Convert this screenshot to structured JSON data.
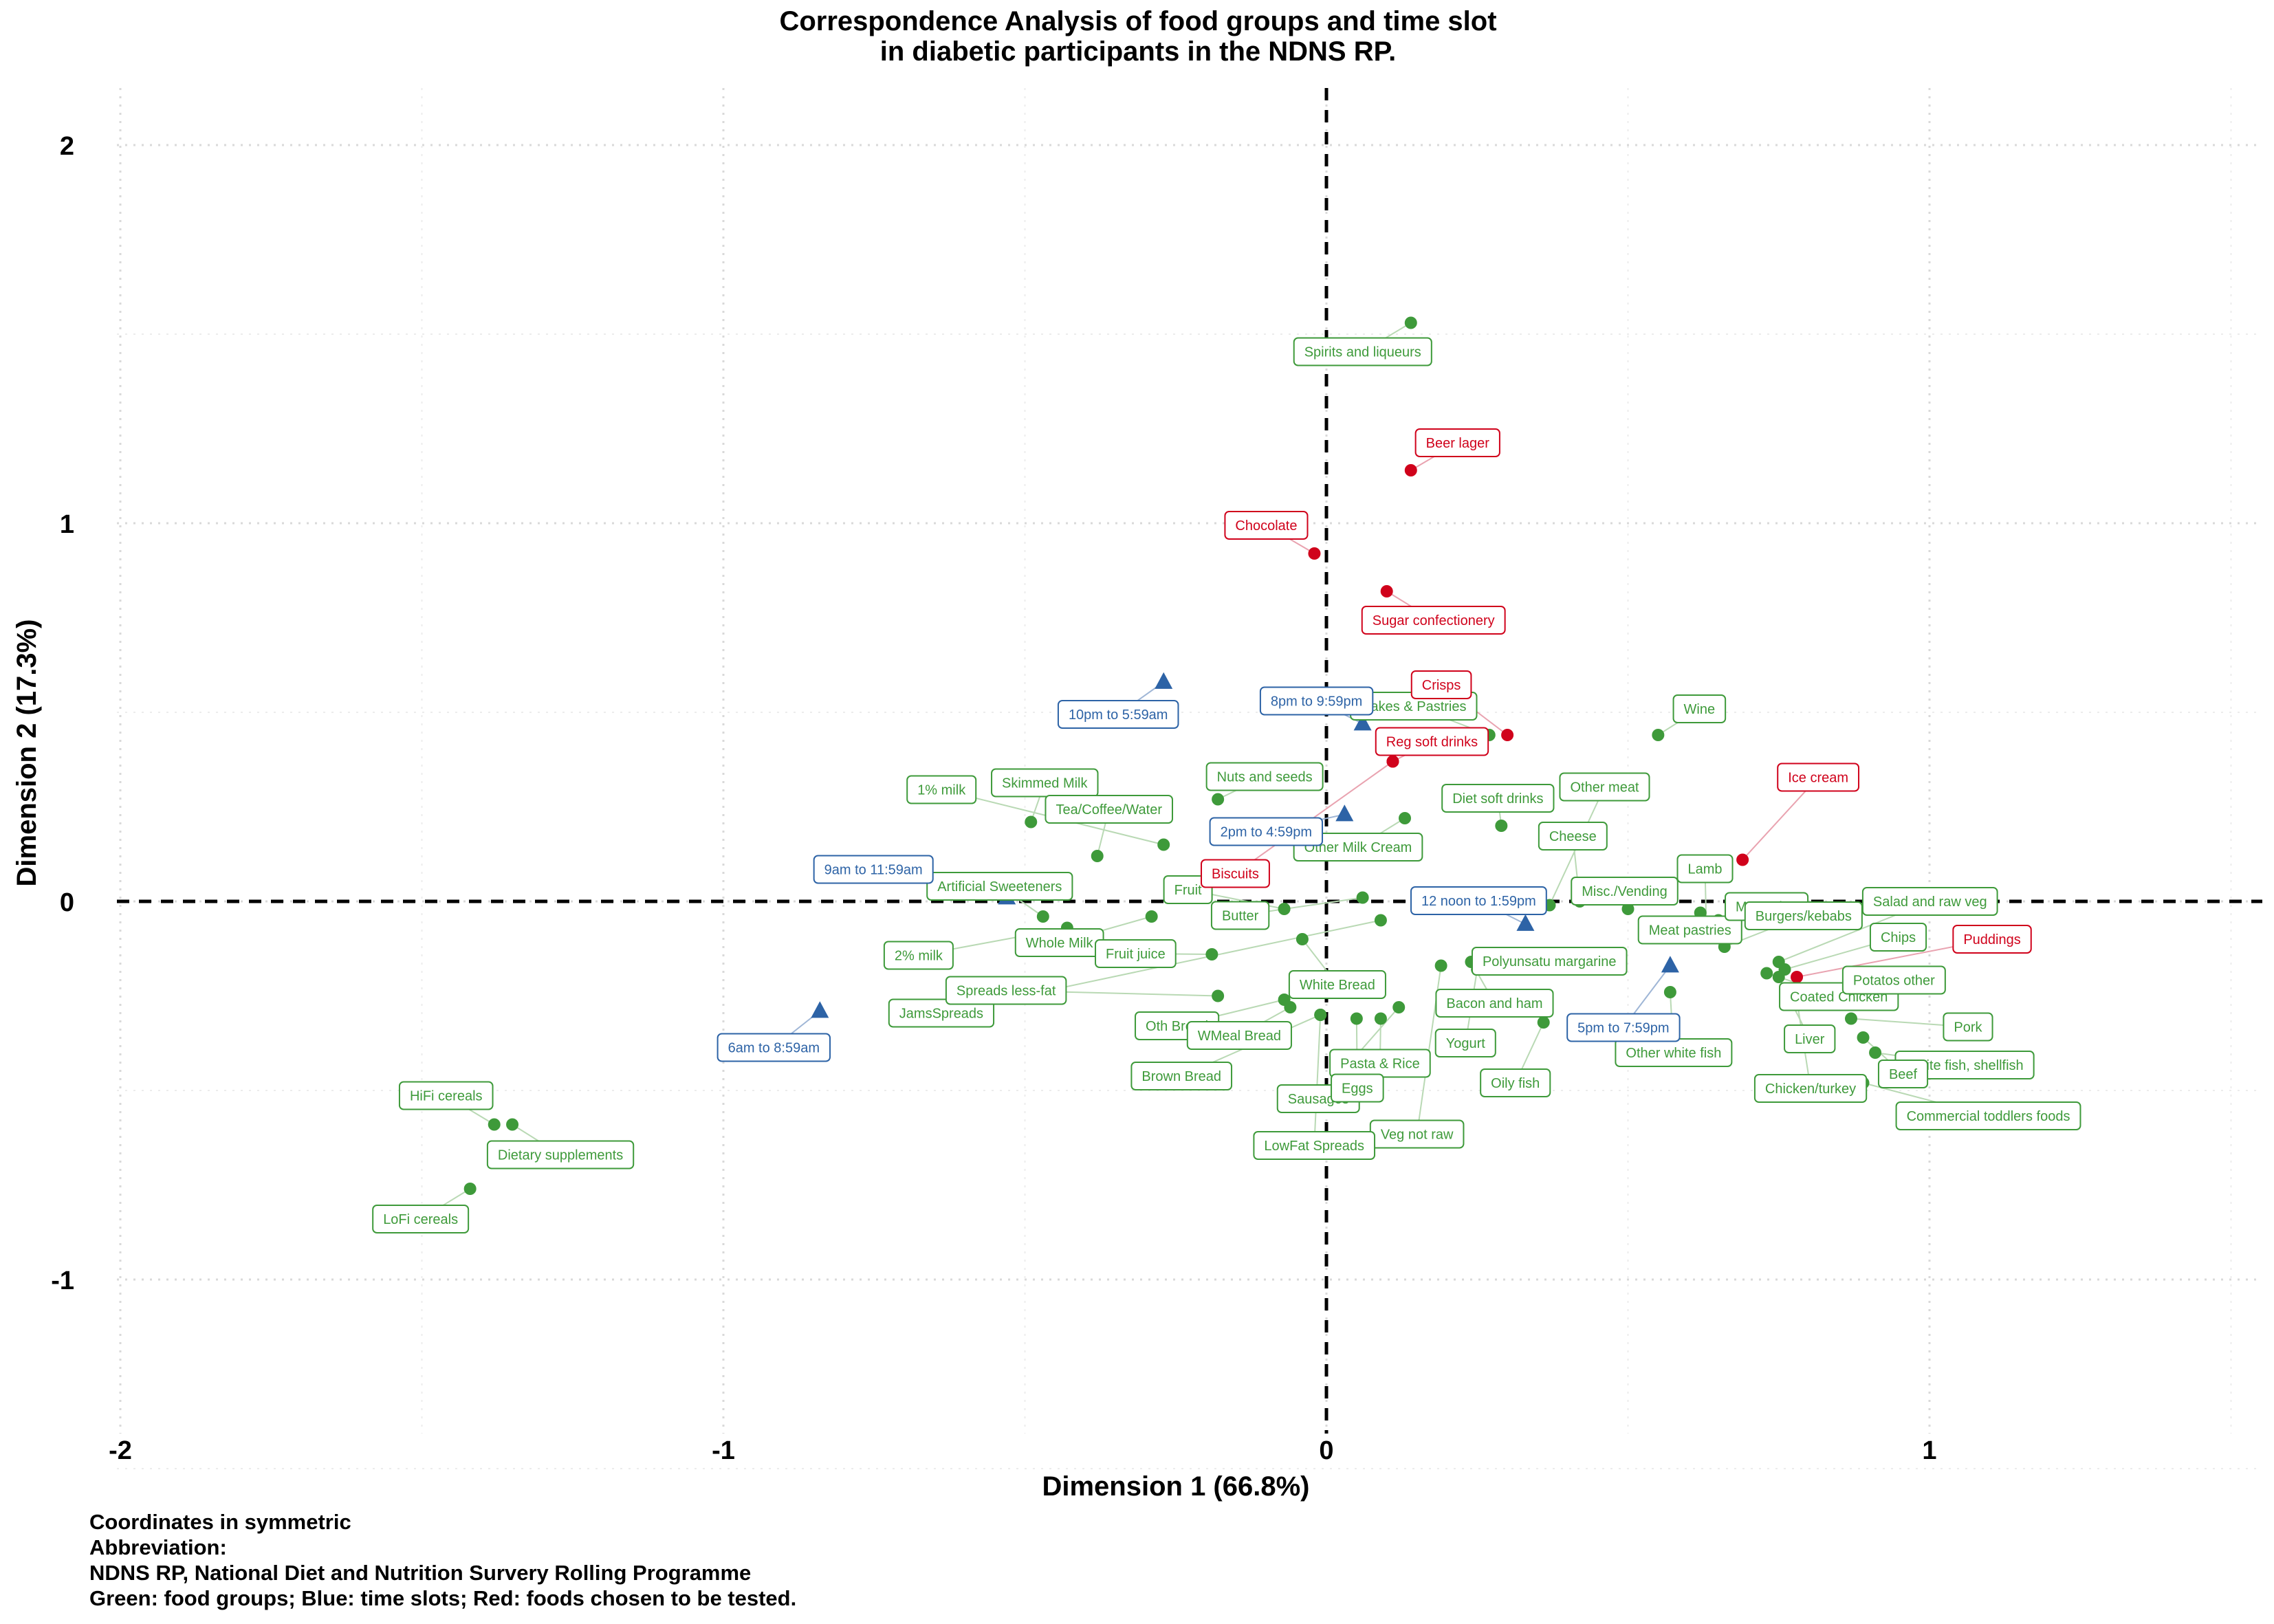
{
  "chart_data": {
    "type": "scatter",
    "title": [
      "Correspondence Analysis of food groups and time slot",
      "in diabetic participants in the NDNS RP."
    ],
    "xlabel": "Dimension 1 (66.8%)",
    "ylabel": "Dimension 2 (17.3%)",
    "xlim": [
      -2.1,
      1.55
    ],
    "ylim": [
      -1.42,
      2.16
    ],
    "x_ticks": [
      -2,
      -1,
      0,
      1
    ],
    "y_ticks": [
      -1,
      0,
      1,
      2
    ],
    "grid": true,
    "reference_lines": "dashed lines at x = 0 and y = 0",
    "colors": {
      "green": "#3e9a3a",
      "blue": "#2d63a6",
      "red": "#d0021b"
    },
    "series": [
      {
        "group": "food groups",
        "marker": "circle",
        "color": "green",
        "points": [
          {
            "label": "Spirits and liqueurs",
            "x": 0.14,
            "y": 1.53
          },
          {
            "label": "HiFi cereals",
            "x": -1.38,
            "y": -0.59
          },
          {
            "label": "Dietary supplements",
            "x": -1.35,
            "y": -0.59
          },
          {
            "label": "LoFi cereals",
            "x": -1.42,
            "y": -0.76
          },
          {
            "label": "Cakes & Pastries",
            "x": 0.27,
            "y": 0.44
          },
          {
            "label": "Wine",
            "x": 0.55,
            "y": 0.44
          },
          {
            "label": "Diet soft drinks",
            "x": 0.29,
            "y": 0.2
          },
          {
            "label": "Other meat",
            "x": 0.37,
            "y": -0.01
          },
          {
            "label": "Cheese",
            "x": 0.42,
            "y": 0.0
          },
          {
            "label": "Misc./Vending",
            "x": 0.5,
            "y": -0.02
          },
          {
            "label": "Meat pastries",
            "x": 0.62,
            "y": -0.03
          },
          {
            "label": "Margarine",
            "x": 0.65,
            "y": -0.05
          },
          {
            "label": "Lamb",
            "x": 0.63,
            "y": -0.07
          },
          {
            "label": "Burgers/kebabs",
            "x": 0.66,
            "y": -0.12
          },
          {
            "label": "Salad and raw veg",
            "x": 0.75,
            "y": -0.16
          },
          {
            "label": "Chips",
            "x": 0.76,
            "y": -0.18
          },
          {
            "label": "Coated Chicken",
            "x": 0.73,
            "y": -0.19
          },
          {
            "label": "Potatos other",
            "x": 0.81,
            "y": -0.23
          },
          {
            "label": "Pork",
            "x": 0.87,
            "y": -0.31
          },
          {
            "label": "White fish, shellfish",
            "x": 0.91,
            "y": -0.4
          },
          {
            "label": "Beef",
            "x": 0.89,
            "y": -0.36
          },
          {
            "label": "Liver",
            "x": 0.75,
            "y": -0.2
          },
          {
            "label": "Chicken/turkey",
            "x": 0.78,
            "y": -0.26
          },
          {
            "label": "Commercial toddlers foods",
            "x": 0.89,
            "y": -0.48
          },
          {
            "label": "Other white fish",
            "x": 0.57,
            "y": -0.24
          },
          {
            "label": "Oily fish",
            "x": 0.36,
            "y": -0.32
          },
          {
            "label": "Veg not raw",
            "x": 0.19,
            "y": -0.17
          },
          {
            "label": "Polyunsatu margarine",
            "x": 0.25,
            "y": -0.18
          },
          {
            "label": "Bacon and ham",
            "x": 0.24,
            "y": -0.16
          },
          {
            "label": "Pasta & Rice",
            "x": 0.09,
            "y": -0.31
          },
          {
            "label": "Sausages",
            "x": 0.12,
            "y": -0.28
          },
          {
            "label": "Skimmed Milk",
            "x": -0.49,
            "y": 0.21
          },
          {
            "label": "1% milk",
            "x": -0.27,
            "y": 0.15
          },
          {
            "label": "Tea/Coffee/Water",
            "x": -0.38,
            "y": 0.12
          },
          {
            "label": "Nuts and seeds",
            "x": -0.18,
            "y": 0.27
          },
          {
            "label": "Other Milk Cream",
            "x": 0.13,
            "y": 0.22
          },
          {
            "label": "Artificial Sweeteners",
            "x": -0.47,
            "y": -0.04
          },
          {
            "label": "2% milk",
            "x": -0.43,
            "y": -0.07
          },
          {
            "label": "Whole Milk",
            "x": -0.29,
            "y": -0.04
          },
          {
            "label": "Fruit juice",
            "x": -0.19,
            "y": -0.14
          },
          {
            "label": "Fruit",
            "x": -0.07,
            "y": -0.02
          },
          {
            "label": "Butter",
            "x": 0.06,
            "y": 0.01
          },
          {
            "label": "White Bread",
            "x": -0.04,
            "y": -0.1
          },
          {
            "label": "JamsSpreads",
            "x": 0.09,
            "y": -0.05
          },
          {
            "label": "Spreads less-fat",
            "x": -0.18,
            "y": -0.25
          },
          {
            "label": "Oth Bread",
            "x": -0.07,
            "y": -0.26
          },
          {
            "label": "WMeal Bread",
            "x": -0.06,
            "y": -0.28
          },
          {
            "label": "Brown Bread",
            "x": -0.01,
            "y": -0.3
          },
          {
            "label": "Eggs",
            "x": 0.05,
            "y": -0.31
          },
          {
            "label": "Yogurt",
            "x": 0.25,
            "y": -0.18
          },
          {
            "label": "LowFat Spreads",
            "x": -0.01,
            "y": -0.3
          }
        ]
      },
      {
        "group": "time slots",
        "marker": "triangle",
        "color": "blue",
        "points": [
          {
            "label": "10pm to 5:59am",
            "x": -0.27,
            "y": 0.58
          },
          {
            "label": "8pm to 9:59pm",
            "x": 0.06,
            "y": 0.47
          },
          {
            "label": "2pm to 4:59pm",
            "x": 0.03,
            "y": 0.23
          },
          {
            "label": "9am to 11:59am",
            "x": -0.53,
            "y": 0.01
          },
          {
            "label": "12 noon to 1:59pm",
            "x": 0.33,
            "y": -0.06
          },
          {
            "label": "5pm to 7:59pm",
            "x": 0.57,
            "y": -0.17
          },
          {
            "label": "6am to 8:59am",
            "x": -0.84,
            "y": -0.29
          }
        ]
      },
      {
        "group": "foods chosen to be tested",
        "marker": "circle",
        "color": "red",
        "points": [
          {
            "label": "Beer lager",
            "x": 0.14,
            "y": 1.14
          },
          {
            "label": "Chocolate",
            "x": -0.02,
            "y": 0.92
          },
          {
            "label": "Sugar confectionery",
            "x": 0.1,
            "y": 0.82
          },
          {
            "label": "Biscuits",
            "x": 0.11,
            "y": 0.37
          },
          {
            "label": "Crisps",
            "x": 0.3,
            "y": 0.44
          },
          {
            "label": "Reg soft drinks",
            "x": 0.11,
            "y": 0.37
          },
          {
            "label": "Ice cream",
            "x": 0.69,
            "y": 0.11
          },
          {
            "label": "Puddings",
            "x": 0.78,
            "y": -0.2
          }
        ]
      }
    ]
  },
  "footnote": [
    "Coordinates in symmetric",
    "Abbreviation:",
    "NDNS RP, National Diet and Nutrition Survery Rolling Programme",
    "Green: food groups; Blue: time slots; Red: foods chosen to be tested."
  ]
}
